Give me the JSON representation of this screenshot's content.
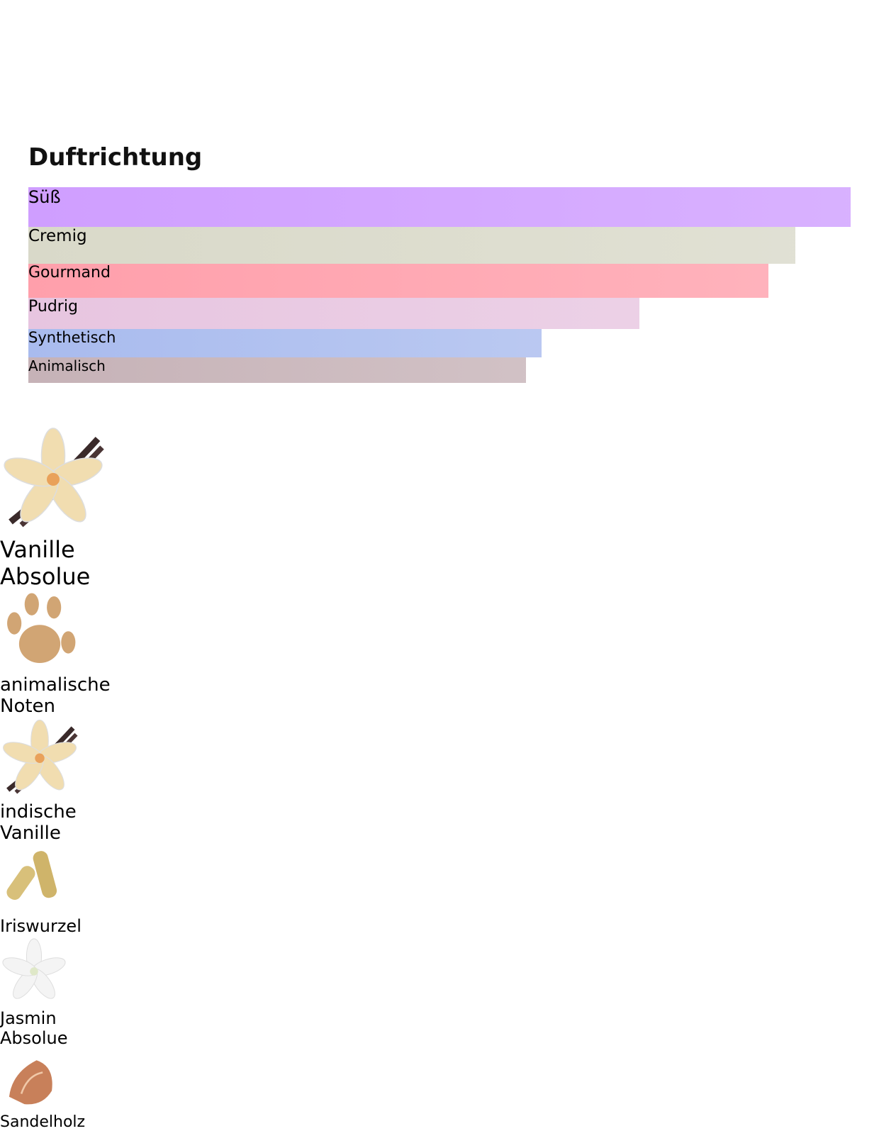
{
  "title": "Duftrichtung",
  "accords": [
    {
      "label": "Süß",
      "strength": 100,
      "color": "#cf9eff"
    },
    {
      "label": "Cremig",
      "strength": 93.3,
      "color": "#d9d9c9"
    },
    {
      "label": "Gourmand",
      "strength": 90,
      "color": "#ff9fab"
    },
    {
      "label": "Pudrig",
      "strength": 74.3,
      "color": "#e7c5e0"
    },
    {
      "label": "Synthetisch",
      "strength": 62.4,
      "color": "#a9bbee"
    },
    {
      "label": "Animalisch",
      "strength": 60.5,
      "color": "#c6b2b7"
    }
  ],
  "notes": [
    {
      "label": "Vanille Absolue"
    },
    {
      "label": "animalische Noten"
    },
    {
      "label": "indische Vanille"
    },
    {
      "label": "Iriswurzel"
    },
    {
      "label": "Jasmin Absolue"
    },
    {
      "label": "Sandelholz"
    }
  ]
}
